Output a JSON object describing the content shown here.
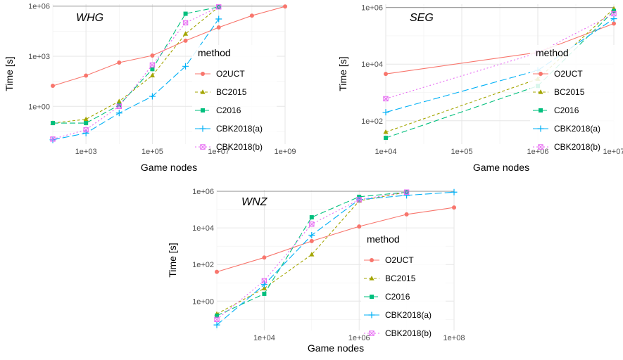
{
  "chart_data": [
    {
      "type": "line",
      "title": "WHG",
      "xlabel": "Game nodes",
      "ylabel": "Time [s]",
      "x_scale": "log10",
      "y_scale": "log10",
      "xlim": [
        100.0,
        1000000000.0
      ],
      "ylim": [
        0.0055,
        1300000.0
      ],
      "x_ticks": [
        1000.0,
        100000.0,
        10000000.0,
        1000000000.0
      ],
      "x_tick_labels": [
        "1e+03",
        "1e+05",
        "1e+07",
        "1e+09"
      ],
      "y_ticks": [
        1,
        1000,
        1000000
      ],
      "y_tick_labels": [
        "1e+00",
        "1e+03",
        "1e+06"
      ],
      "timeout_line": 1000000.0,
      "legend_title": "method",
      "series": [
        {
          "name": "O2UCT",
          "x": [
            100.0,
            1000.0,
            10000.0,
            100000.0,
            1000000.0,
            10000000.0,
            100000000.0,
            1000000000.0
          ],
          "y": [
            17,
            70,
            420,
            1100,
            8500,
            53000,
            270000,
            950000
          ]
        },
        {
          "name": "BC2015",
          "x": [
            100.0,
            1000.0,
            10000.0,
            100000.0,
            1000000.0,
            10000000.0
          ],
          "y": [
            0.1,
            0.17,
            2,
            70,
            22000,
            900000
          ]
        },
        {
          "name": "C2016",
          "x": [
            100.0,
            1000.0,
            10000.0,
            100000.0,
            1000000.0,
            10000000.0
          ],
          "y": [
            0.1,
            0.1,
            1.2,
            170,
            350000,
            900000
          ]
        },
        {
          "name": "CBK2018(a)",
          "x": [
            100.0,
            1000.0,
            10000.0,
            100000.0,
            1000000.0,
            10000000.0
          ],
          "y": [
            0.01,
            0.025,
            0.4,
            4,
            250,
            170000
          ]
        },
        {
          "name": "CBK2018(b)",
          "x": [
            100.0,
            1000.0,
            10000.0,
            100000.0,
            1000000.0,
            10000000.0
          ],
          "y": [
            0.011,
            0.04,
            1,
            300,
            100000,
            900000
          ]
        }
      ]
    },
    {
      "type": "line",
      "title": "SEG",
      "xlabel": "Game nodes",
      "ylabel": "Time [s]",
      "x_scale": "log10",
      "y_scale": "log10",
      "xlim": [
        10000.0,
        10000000.0
      ],
      "ylim": [
        15,
        1300000.0
      ],
      "x_ticks": [
        10000.0,
        100000.0,
        1000000.0,
        10000000.0
      ],
      "x_tick_labels": [
        "1e+04",
        "1e+05",
        "1e+06",
        "1e+07"
      ],
      "y_ticks": [
        100,
        10000,
        1000000
      ],
      "y_tick_labels": [
        "1e+02",
        "1e+04",
        "1e+06"
      ],
      "timeout_line": 1000000.0,
      "legend_title": "method",
      "series": [
        {
          "name": "O2UCT",
          "x": [
            10000.0,
            1000000.0,
            10000000.0
          ],
          "y": [
            4500,
            26000,
            270000
          ]
        },
        {
          "name": "BC2015",
          "x": [
            10000.0,
            1000000.0,
            10000000.0
          ],
          "y": [
            40,
            3000,
            900000
          ]
        },
        {
          "name": "C2016",
          "x": [
            10000.0,
            1000000.0,
            10000000.0
          ],
          "y": [
            25,
            1700,
            750000
          ]
        },
        {
          "name": "CBK2018(a)",
          "x": [
            10000.0,
            1000000.0,
            10000000.0
          ],
          "y": [
            200,
            6000,
            400000
          ]
        },
        {
          "name": "CBK2018(b)",
          "x": [
            10000.0,
            1000000.0,
            10000000.0
          ],
          "y": [
            600,
            25000,
            600000
          ]
        }
      ]
    },
    {
      "type": "line",
      "title": "WNZ",
      "xlabel": "Game nodes",
      "ylabel": "Time [s]",
      "x_scale": "log10",
      "y_scale": "log10",
      "xlim": [
        1000.0,
        100000000.0
      ],
      "ylim": [
        0.025,
        1200000.0
      ],
      "x_ticks": [
        10000.0,
        1000000.0,
        100000000.0
      ],
      "x_tick_labels": [
        "1e+04",
        "1e+06",
        "1e+08"
      ],
      "y_ticks": [
        1,
        100,
        10000,
        1000000
      ],
      "y_tick_labels": [
        "1e+00",
        "1e+02",
        "1e+04",
        "1e+06"
      ],
      "timeout_line": 1000000.0,
      "legend_title": "method",
      "series": [
        {
          "name": "O2UCT",
          "x": [
            1000.0,
            10000.0,
            100000.0,
            1000000.0,
            10000000.0,
            100000000.0
          ],
          "y": [
            40,
            240,
            1900,
            12000,
            55000,
            130000
          ]
        },
        {
          "name": "BC2015",
          "x": [
            1000.0,
            10000.0,
            100000.0,
            1000000.0,
            10000000.0
          ],
          "y": [
            0.2,
            5,
            350,
            300000,
            900000
          ]
        },
        {
          "name": "C2016",
          "x": [
            1000.0,
            10000.0,
            100000.0,
            1000000.0,
            10000000.0
          ],
          "y": [
            0.16,
            2.5,
            38000,
            500000,
            900000
          ]
        },
        {
          "name": "CBK2018(a)",
          "x": [
            1000.0,
            10000.0,
            100000.0,
            1000000.0,
            10000000.0,
            100000000.0
          ],
          "y": [
            0.05,
            8,
            4000,
            350000,
            600000,
            900000
          ]
        },
        {
          "name": "CBK2018(b)",
          "x": [
            1000.0,
            10000.0,
            100000.0,
            1000000.0,
            10000000.0
          ],
          "y": [
            0.1,
            13,
            16000,
            350000,
            900000
          ]
        }
      ]
    }
  ],
  "styles": [
    {
      "name": "O2UCT",
      "color": "#F8766D",
      "dash": "",
      "marker": "circle"
    },
    {
      "name": "BC2015",
      "color": "#A3A500",
      "dash": "4,3",
      "marker": "triangle"
    },
    {
      "name": "C2016",
      "color": "#00BF7D",
      "dash": "8,4",
      "marker": "square"
    },
    {
      "name": "CBK2018(a)",
      "color": "#00B0F6",
      "dash": "10,4",
      "marker": "plus"
    },
    {
      "name": "CBK2018(b)",
      "color": "#E76BF3",
      "dash": "2,3",
      "marker": "squarecross"
    }
  ],
  "timeout_color": "#A0A0A0"
}
